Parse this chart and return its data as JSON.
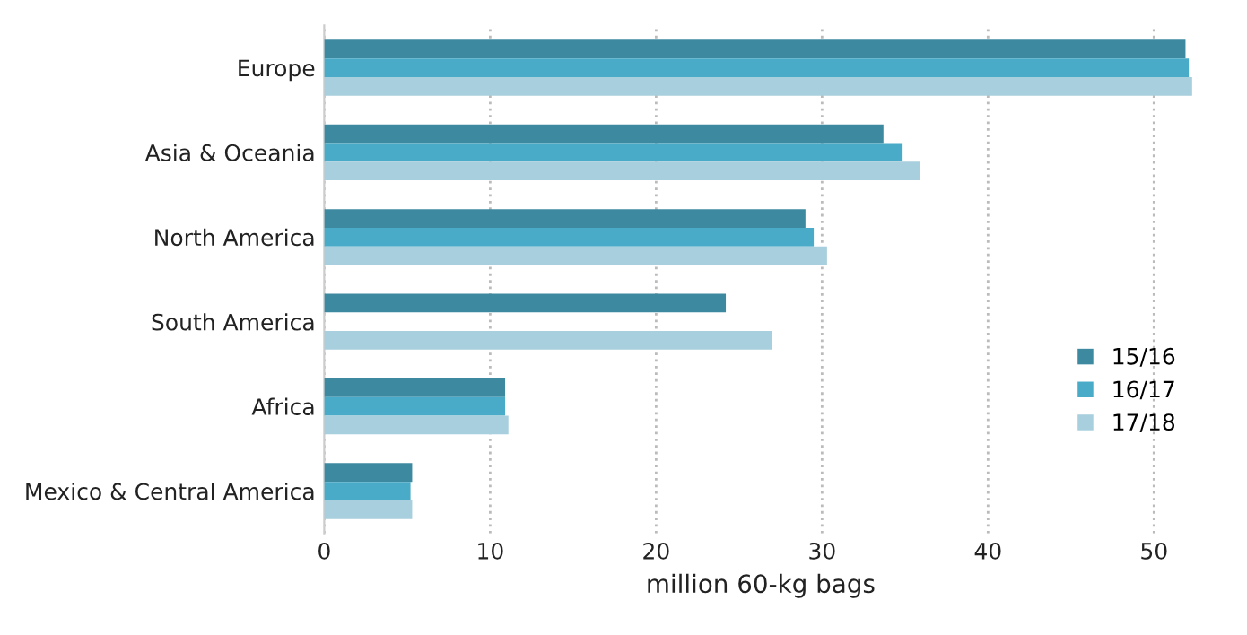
{
  "chart_data": {
    "type": "bar",
    "orientation": "horizontal",
    "xlabel": "million 60-kg bags",
    "categories": [
      "Europe",
      "Asia & Oceania",
      "North America",
      "South America",
      "Africa",
      "Mexico & Central America"
    ],
    "series": [
      {
        "name": "15/16",
        "color": "#3d8aa0",
        "values": [
          51.9,
          33.7,
          29.0,
          24.2,
          10.9,
          5.3
        ]
      },
      {
        "name": "16/17",
        "color": "#4aabc8",
        "values": [
          52.1,
          34.8,
          29.5,
          null,
          10.9,
          5.2
        ]
      },
      {
        "name": "17/18",
        "color": "#a8cfdd",
        "values": [
          52.3,
          35.9,
          30.3,
          27.0,
          11.1,
          5.3
        ]
      }
    ],
    "xlim": [
      0,
      52.6
    ],
    "xticks": [
      0,
      10,
      20,
      30,
      40,
      50
    ],
    "grid": "x",
    "legend": "right"
  }
}
